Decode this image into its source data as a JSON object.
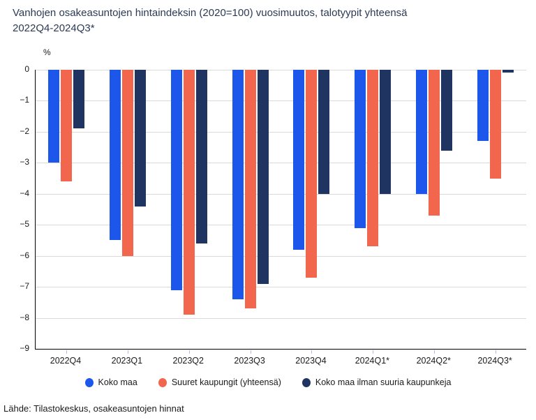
{
  "title": {
    "line1": "Vanhojen osakeasuntojen hintaindeksin (2020=100) vuosimuutos, talotyypit yhteensä",
    "line2": "2022Q4-2024Q3*"
  },
  "y_axis_unit": "%",
  "source": "Lähde: Tilastokeskus, osakeasuntojen hinnat",
  "colors": {
    "koko_maa": "#1d56eb",
    "suuret_kaupungit": "#f2664e",
    "koko_maa_ilman": "#1f3460",
    "gridline": "#d9d9d9",
    "axis": "#000000",
    "tick_mark": "#aebedd",
    "title_text": "#2b3a55"
  },
  "chart_data": {
    "type": "bar",
    "categories": [
      "2022Q4",
      "2023Q1",
      "2023Q2",
      "2023Q3",
      "2023Q4",
      "2024Q1*",
      "2024Q2*",
      "2024Q3*"
    ],
    "series": [
      {
        "name": "Koko maa",
        "color": "#1d56eb",
        "values": [
          -3.0,
          -5.5,
          -7.1,
          -7.4,
          -5.8,
          -5.1,
          -4.0,
          -2.3
        ]
      },
      {
        "name": "Suuret kaupungit (yhteensä)",
        "color": "#f2664e",
        "values": [
          -3.6,
          -6.0,
          -7.9,
          -7.7,
          -6.7,
          -5.7,
          -4.7,
          -3.5
        ]
      },
      {
        "name": "Koko maa ilman suuria kaupunkeja",
        "color": "#1f3460",
        "values": [
          -1.9,
          -4.4,
          -5.6,
          -6.9,
          -4.0,
          -4.0,
          -2.6,
          -0.1
        ]
      }
    ],
    "title": "Vanhojen osakeasuntojen hintaindeksin (2020=100) vuosimuutos, talotyypit yhteensä 2022Q4-2024Q3*",
    "xlabel": "",
    "ylabel": "%",
    "ylim": [
      -9,
      0
    ],
    "y_tick_labels": [
      "0",
      "−1",
      "−2",
      "−3",
      "−4",
      "−5",
      "−6",
      "−7",
      "−8",
      "−9"
    ],
    "grid": true,
    "legend_position": "bottom"
  }
}
